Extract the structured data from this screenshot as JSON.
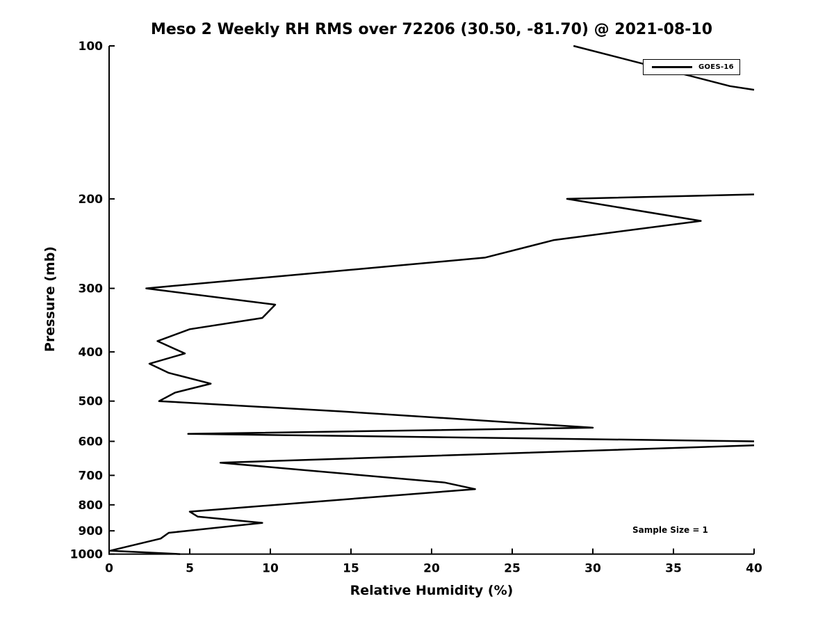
{
  "title": "Meso 2 Weekly RH RMS over 72206 (30.50, -81.70) @ 2021-08-10",
  "annotation": "Sample Size = 1",
  "legend": {
    "label": "GOES-16",
    "position": "upper right",
    "line_color": "#000000"
  },
  "colors": {
    "axis": "#000000",
    "background": "#ffffff",
    "series": "#000000"
  },
  "chart_data": {
    "type": "line",
    "title": "Meso 2 Weekly RH RMS over 72206 (30.50, -81.70) @ 2021-08-10",
    "xlabel": "Relative Humidity (%)",
    "ylabel": "Pressure (mb)",
    "xlim": [
      0,
      40
    ],
    "x_ticks": [
      0,
      5,
      10,
      15,
      20,
      25,
      30,
      35,
      40
    ],
    "y_scale": "log",
    "ylim": [
      100,
      1000
    ],
    "y_ticks": [
      100,
      200,
      300,
      400,
      500,
      600,
      700,
      800,
      900,
      1000
    ],
    "grid": false,
    "legend_position": "upper right",
    "series": [
      {
        "name": "GOES-16",
        "color": "#000000",
        "note": "points are [relative_humidity_percent, pressure_mb]; segments are separated where the trace exits the RH=40 axis limit (clipped)",
        "segments": [
          [
            [
              28.8,
              100
            ],
            [
              38.5,
              120
            ],
            [
              40.0,
              122
            ]
          ],
          [
            [
              40.0,
              196
            ],
            [
              28.4,
              200
            ],
            [
              36.7,
              221
            ],
            [
              27.6,
              241
            ],
            [
              23.3,
              261
            ],
            [
              2.3,
              300
            ],
            [
              10.3,
              323
            ],
            [
              9.5,
              343
            ],
            [
              5.0,
              361
            ],
            [
              3.0,
              381
            ],
            [
              4.7,
              403
            ],
            [
              2.5,
              422
            ],
            [
              3.7,
              440
            ],
            [
              6.3,
              462
            ],
            [
              4.1,
              481
            ],
            [
              3.1,
              500
            ],
            [
              14.4,
              524
            ],
            [
              30.0,
              564
            ],
            [
              4.9,
              580
            ],
            [
              40.0,
              600
            ]
          ],
          [
            [
              40.0,
              611
            ],
            [
              6.9,
              661
            ],
            [
              20.8,
              723
            ],
            [
              22.7,
              745
            ],
            [
              5.0,
              825
            ],
            [
              5.5,
              844
            ],
            [
              9.5,
              868
            ],
            [
              3.7,
              908
            ],
            [
              3.2,
              932
            ],
            [
              0.05,
              985
            ],
            [
              4.4,
              1000
            ]
          ]
        ]
      }
    ]
  }
}
